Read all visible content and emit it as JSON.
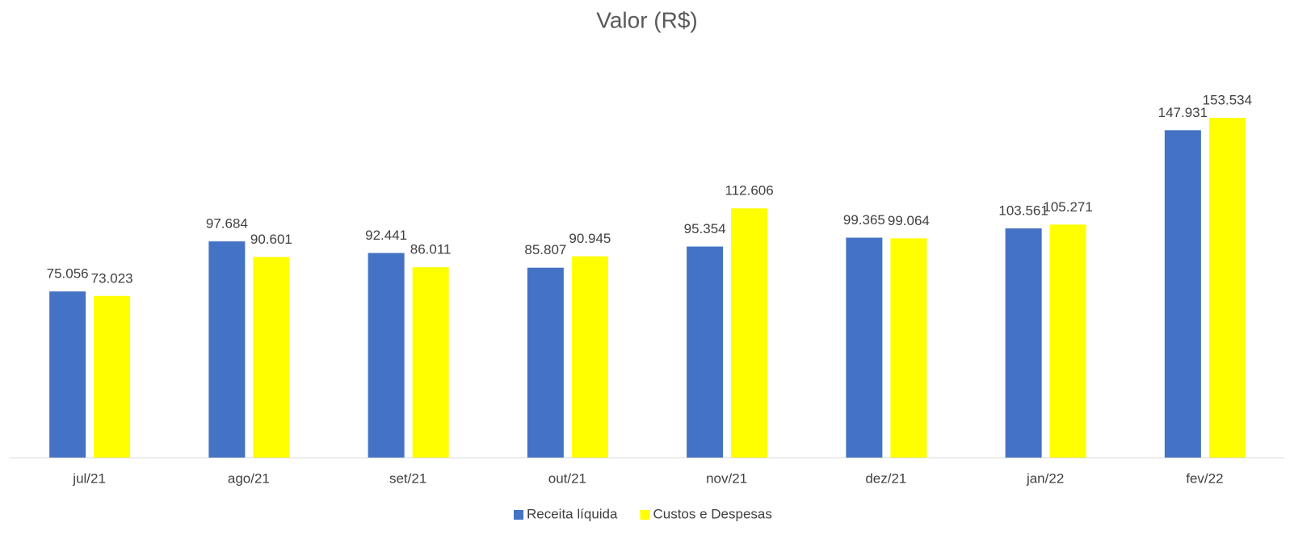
{
  "chart_data": {
    "type": "bar",
    "title": "Valor (R$)",
    "categories": [
      "jul/21",
      "ago/21",
      "set/21",
      "out/21",
      "nov/21",
      "dez/21",
      "jan/22",
      "fev/22"
    ],
    "series": [
      {
        "name": "Receita líquida",
        "color": "#4472c4",
        "values": [
          75056,
          97684,
          92441,
          85807,
          95354,
          99365,
          103561,
          147931
        ],
        "value_labels": [
          "75.056",
          "97.684",
          "92.441",
          "85.807",
          "95.354",
          "99.365",
          "103.561",
          "147.931"
        ]
      },
      {
        "name": "Custos e Despesas",
        "color": "#ffff00",
        "values": [
          73023,
          90601,
          86011,
          90945,
          112606,
          99064,
          105271,
          153534
        ],
        "value_labels": [
          "73.023",
          "90.601",
          "86.011",
          "90.945",
          "112.606",
          "99.064",
          "105.271",
          "153.534"
        ]
      }
    ],
    "legend": "bottom"
  }
}
